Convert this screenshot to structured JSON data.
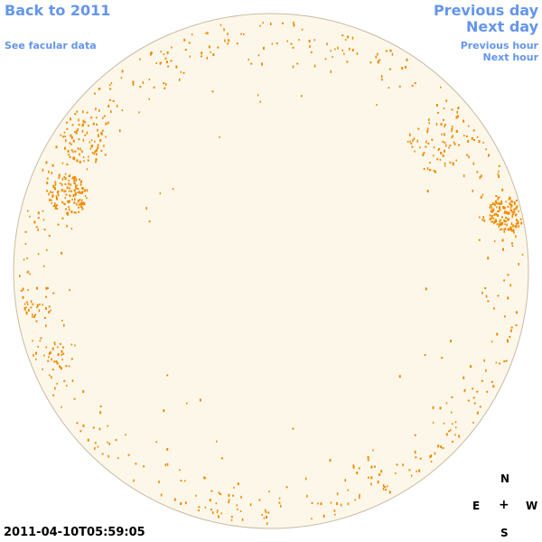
{
  "nav": {
    "back_label": "Back to 2011",
    "facular_label": "See facular data",
    "prev_day_label": "Previous day",
    "next_day_label": "Next day",
    "prev_hour_label": "Previous hour",
    "next_hour_label": "Next hour"
  },
  "timestamp": "2011-04-10T05:59:05",
  "compass": {
    "north": "N",
    "south": "S",
    "east": "E",
    "west": "W",
    "center": "+"
  },
  "colors": {
    "disk_fill": "#FDF7EA",
    "disk_edge": "#C8BBA3",
    "spot": "#F08A00",
    "link": "#6495ED"
  }
}
